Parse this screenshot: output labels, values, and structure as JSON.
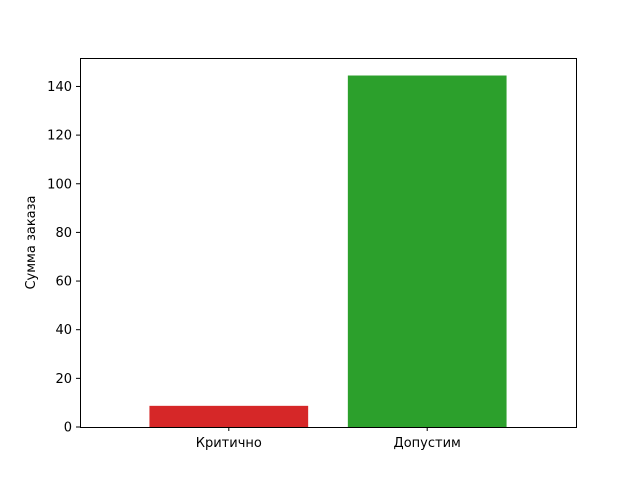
{
  "chart_data": {
    "type": "bar",
    "categories": [
      "Критично",
      "Допустим"
    ],
    "values": [
      8.7,
      144.5
    ],
    "colors": [
      "#d62728",
      "#2ca02c"
    ],
    "title": "",
    "xlabel": "",
    "ylabel": "Сумма заказа",
    "ylim": [
      0,
      151.7
    ],
    "yticks": [
      0,
      20,
      40,
      60,
      80,
      100,
      120,
      140
    ],
    "grid": false,
    "legend": "none"
  }
}
